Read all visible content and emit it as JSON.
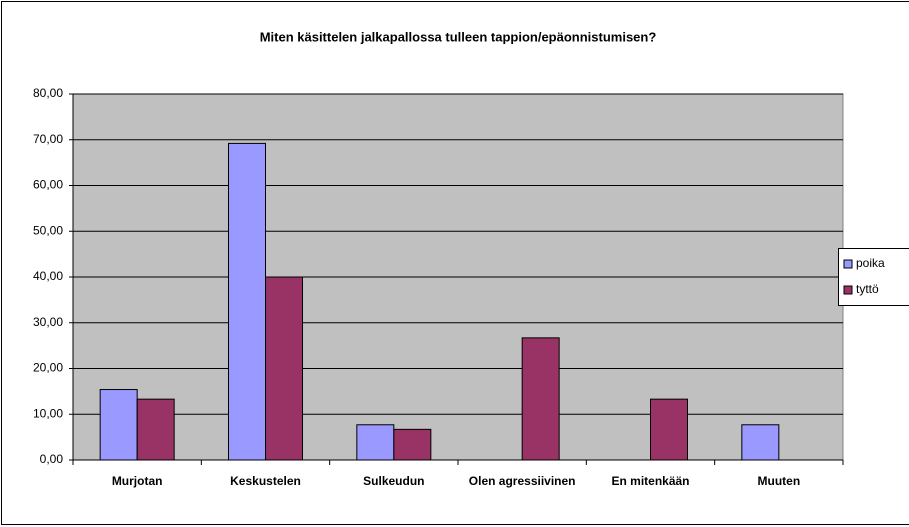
{
  "chart_data": {
    "type": "bar",
    "title": "Miten käsittelen jalkapallossa tulleen tappion/epäonnistumisen?",
    "categories": [
      "Murjotan",
      "Keskustelen",
      "Sulkeudun",
      "Olen agressiivinen",
      "En mitenkään",
      "Muuten"
    ],
    "series": [
      {
        "name": "poika",
        "color": "#9999ff",
        "values": [
          15.4,
          69.2,
          7.7,
          0,
          0,
          7.7
        ]
      },
      {
        "name": "tyttö",
        "color": "#993366",
        "values": [
          13.3,
          40.0,
          6.7,
          26.7,
          13.3,
          0
        ]
      }
    ],
    "ylim": [
      0,
      80
    ],
    "yticks": [
      {
        "value": 0,
        "label": "0,00"
      },
      {
        "value": 10,
        "label": "10,00"
      },
      {
        "value": 20,
        "label": "20,00"
      },
      {
        "value": 30,
        "label": "30,00"
      },
      {
        "value": 40,
        "label": "40,00"
      },
      {
        "value": 50,
        "label": "50,00"
      },
      {
        "value": 60,
        "label": "60,00"
      },
      {
        "value": 70,
        "label": "70,00"
      },
      {
        "value": 80,
        "label": "80,00"
      }
    ],
    "grid": true,
    "legend": "right"
  }
}
